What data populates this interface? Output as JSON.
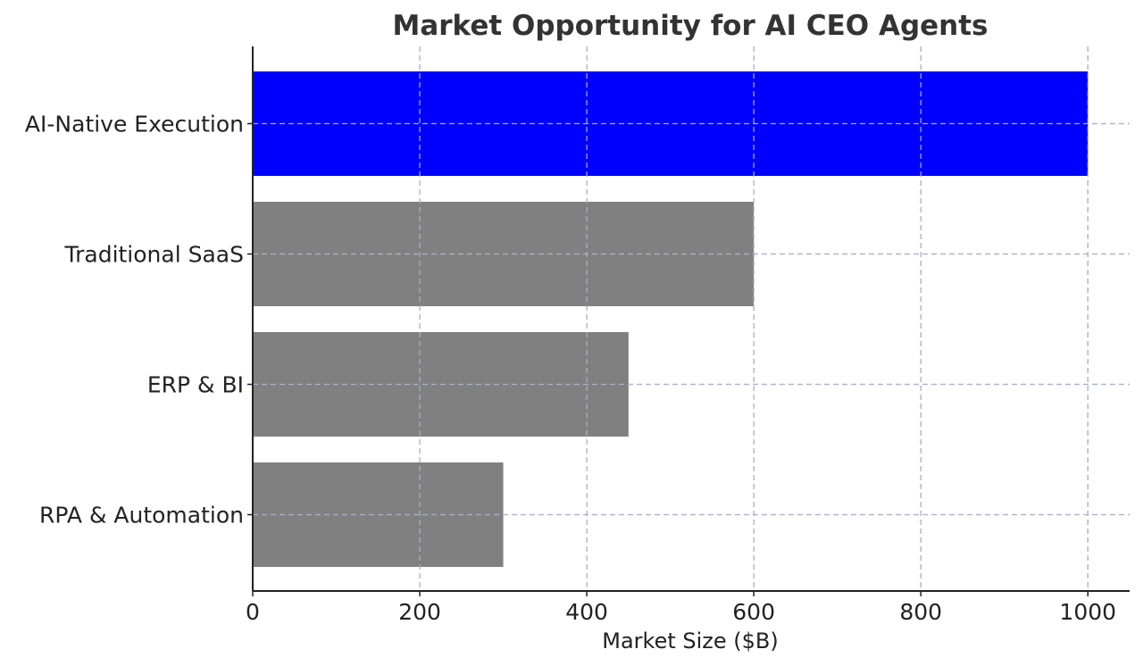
{
  "chart_data": {
    "type": "bar",
    "orientation": "horizontal",
    "title": "Market Opportunity for AI CEO Agents",
    "xlabel": "Market Size ($B)",
    "ylabel": "",
    "categories": [
      "RPA & Automation",
      "ERP & BI",
      "Traditional SaaS",
      "AI-Native Execution"
    ],
    "values": [
      300,
      450,
      600,
      1000
    ],
    "colors": [
      "#808080",
      "#808080",
      "#808080",
      "#0000ff"
    ],
    "xlim": [
      0,
      1050
    ],
    "xticks": [
      0,
      200,
      400,
      600,
      800,
      1000
    ],
    "grid": true
  }
}
